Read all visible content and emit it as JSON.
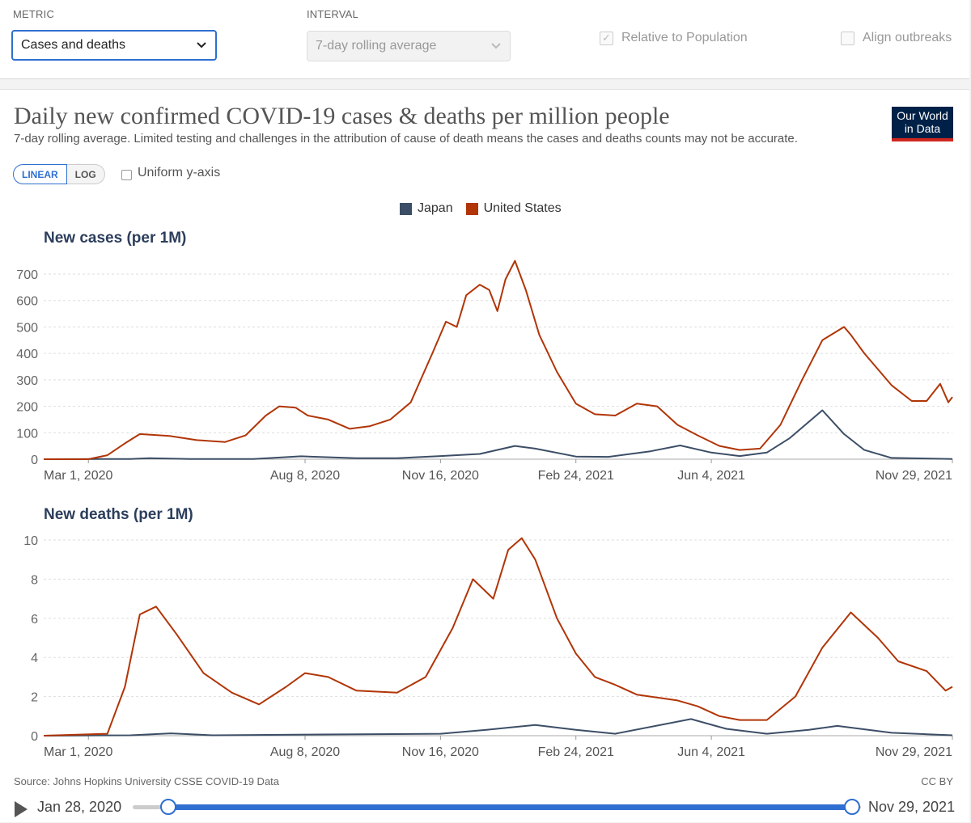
{
  "controls": {
    "metric_label": "METRIC",
    "metric_value": "Cases and deaths",
    "interval_label": "INTERVAL",
    "interval_value": "7-day rolling average",
    "relative_label": "Relative to Population",
    "relative_checked": true,
    "align_label": "Align outbreaks",
    "align_checked": false,
    "accent_color": "#2f6fd1"
  },
  "card": {
    "title": "Daily new confirmed COVID-19 cases & deaths per million people",
    "subtitle": "7-day rolling average. Limited testing and challenges in the attribution of cause of death means the cases and deaths counts may not be accurate.",
    "logo_line1": "Our World",
    "logo_line2": "in Data",
    "scale_linear": "LINEAR",
    "scale_log": "LOG",
    "uniform_label": "Uniform y-axis",
    "source": "Source: Johns Hopkins University CSSE COVID-19 Data",
    "license": "CC BY",
    "timeline_start": "Jan 28, 2020",
    "timeline_end": "Nov 29, 2021"
  },
  "chart_data": [
    {
      "type": "line",
      "title": "New cases (per 1M)",
      "ylim": [
        0,
        700
      ],
      "yticks": [
        0,
        100,
        200,
        300,
        400,
        500,
        600,
        700
      ],
      "xticks": [
        "Mar 1, 2020",
        "Aug 8, 2020",
        "Nov 16, 2020",
        "Feb 24, 2021",
        "Jun 4, 2021",
        "Nov 29, 2021"
      ],
      "grid": true,
      "legend": "top-center",
      "series": [
        {
          "name": "Japan",
          "color": "#3c4e66",
          "points": [
            [
              "2020-01-28",
              0
            ],
            [
              "2020-04-01",
              1
            ],
            [
              "2020-04-15",
              4
            ],
            [
              "2020-05-15",
              0.5
            ],
            [
              "2020-07-01",
              1
            ],
            [
              "2020-08-05",
              11
            ],
            [
              "2020-09-15",
              4
            ],
            [
              "2020-10-15",
              4
            ],
            [
              "2020-11-16",
              12
            ],
            [
              "2020-12-15",
              20
            ],
            [
              "2021-01-10",
              50
            ],
            [
              "2021-01-25",
              40
            ],
            [
              "2021-02-24",
              10
            ],
            [
              "2021-03-20",
              9
            ],
            [
              "2021-04-20",
              30
            ],
            [
              "2021-05-12",
              52
            ],
            [
              "2021-06-04",
              25
            ],
            [
              "2021-06-25",
              12
            ],
            [
              "2021-07-15",
              25
            ],
            [
              "2021-08-01",
              80
            ],
            [
              "2021-08-25",
              185
            ],
            [
              "2021-09-10",
              95
            ],
            [
              "2021-09-25",
              35
            ],
            [
              "2021-10-15",
              5
            ],
            [
              "2021-11-29",
              1
            ]
          ]
        },
        {
          "name": "United States",
          "color": "#b13507",
          "points": [
            [
              "2020-01-28",
              0
            ],
            [
              "2020-03-01",
              0
            ],
            [
              "2020-03-15",
              15
            ],
            [
              "2020-03-28",
              60
            ],
            [
              "2020-04-08",
              95
            ],
            [
              "2020-04-30",
              88
            ],
            [
              "2020-05-20",
              72
            ],
            [
              "2020-06-10",
              65
            ],
            [
              "2020-06-25",
              90
            ],
            [
              "2020-07-10",
              165
            ],
            [
              "2020-07-20",
              200
            ],
            [
              "2020-08-01",
              195
            ],
            [
              "2020-08-10",
              165
            ],
            [
              "2020-08-25",
              150
            ],
            [
              "2020-09-10",
              115
            ],
            [
              "2020-09-25",
              125
            ],
            [
              "2020-10-10",
              150
            ],
            [
              "2020-10-25",
              215
            ],
            [
              "2020-11-10",
              400
            ],
            [
              "2020-11-20",
              520
            ],
            [
              "2020-11-28",
              500
            ],
            [
              "2020-12-05",
              620
            ],
            [
              "2020-12-15",
              660
            ],
            [
              "2020-12-22",
              640
            ],
            [
              "2020-12-28",
              560
            ],
            [
              "2021-01-03",
              680
            ],
            [
              "2021-01-10",
              750
            ],
            [
              "2021-01-18",
              640
            ],
            [
              "2021-01-28",
              470
            ],
            [
              "2021-02-10",
              330
            ],
            [
              "2021-02-24",
              210
            ],
            [
              "2021-03-10",
              170
            ],
            [
              "2021-03-25",
              165
            ],
            [
              "2021-04-10",
              210
            ],
            [
              "2021-04-25",
              200
            ],
            [
              "2021-05-10",
              130
            ],
            [
              "2021-05-25",
              90
            ],
            [
              "2021-06-10",
              50
            ],
            [
              "2021-06-25",
              35
            ],
            [
              "2021-07-10",
              40
            ],
            [
              "2021-07-25",
              130
            ],
            [
              "2021-08-10",
              300
            ],
            [
              "2021-08-25",
              450
            ],
            [
              "2021-09-10",
              500
            ],
            [
              "2021-09-15",
              470
            ],
            [
              "2021-09-25",
              400
            ],
            [
              "2021-10-15",
              280
            ],
            [
              "2021-10-30",
              220
            ],
            [
              "2021-11-10",
              220
            ],
            [
              "2021-11-20",
              285
            ],
            [
              "2021-11-26",
              215
            ],
            [
              "2021-11-29",
              235
            ]
          ]
        }
      ]
    },
    {
      "type": "line",
      "title": "New deaths (per 1M)",
      "ylim": [
        0,
        10
      ],
      "yticks": [
        0,
        2,
        4,
        6,
        8,
        10
      ],
      "xticks": [
        "Mar 1, 2020",
        "Aug 8, 2020",
        "Nov 16, 2020",
        "Feb 24, 2021",
        "Jun 4, 2021",
        "Nov 29, 2021"
      ],
      "grid": true,
      "series": [
        {
          "name": "Japan",
          "color": "#3c4e66",
          "points": [
            [
              "2020-01-28",
              0
            ],
            [
              "2020-04-01",
              0.02
            ],
            [
              "2020-05-01",
              0.12
            ],
            [
              "2020-06-01",
              0.02
            ],
            [
              "2020-08-20",
              0.06
            ],
            [
              "2020-11-16",
              0.1
            ],
            [
              "2020-12-20",
              0.3
            ],
            [
              "2021-01-25",
              0.55
            ],
            [
              "2021-02-24",
              0.3
            ],
            [
              "2021-03-25",
              0.1
            ],
            [
              "2021-05-20",
              0.85
            ],
            [
              "2021-06-15",
              0.35
            ],
            [
              "2021-07-15",
              0.1
            ],
            [
              "2021-08-15",
              0.3
            ],
            [
              "2021-09-05",
              0.5
            ],
            [
              "2021-10-15",
              0.15
            ],
            [
              "2021-11-29",
              0.02
            ]
          ]
        },
        {
          "name": "United States",
          "color": "#b13507",
          "points": [
            [
              "2020-01-28",
              0
            ],
            [
              "2020-03-15",
              0.1
            ],
            [
              "2020-03-28",
              2.5
            ],
            [
              "2020-04-08",
              6.2
            ],
            [
              "2020-04-20",
              6.6
            ],
            [
              "2020-05-05",
              5.2
            ],
            [
              "2020-05-25",
              3.2
            ],
            [
              "2020-06-15",
              2.2
            ],
            [
              "2020-07-05",
              1.6
            ],
            [
              "2020-07-25",
              2.5
            ],
            [
              "2020-08-08",
              3.2
            ],
            [
              "2020-08-25",
              3.0
            ],
            [
              "2020-09-15",
              2.3
            ],
            [
              "2020-10-15",
              2.2
            ],
            [
              "2020-11-05",
              3.0
            ],
            [
              "2020-11-25",
              5.5
            ],
            [
              "2020-12-10",
              8.0
            ],
            [
              "2020-12-25",
              7.0
            ],
            [
              "2021-01-05",
              9.5
            ],
            [
              "2021-01-15",
              10.1
            ],
            [
              "2021-01-25",
              9.0
            ],
            [
              "2021-02-10",
              6.0
            ],
            [
              "2021-02-24",
              4.2
            ],
            [
              "2021-03-10",
              3.0
            ],
            [
              "2021-03-25",
              2.6
            ],
            [
              "2021-04-10",
              2.1
            ],
            [
              "2021-05-10",
              1.8
            ],
            [
              "2021-05-25",
              1.5
            ],
            [
              "2021-06-10",
              1.0
            ],
            [
              "2021-06-25",
              0.8
            ],
            [
              "2021-07-15",
              0.8
            ],
            [
              "2021-08-05",
              2.0
            ],
            [
              "2021-08-25",
              4.5
            ],
            [
              "2021-09-15",
              6.3
            ],
            [
              "2021-10-05",
              5.0
            ],
            [
              "2021-10-20",
              3.8
            ],
            [
              "2021-11-10",
              3.3
            ],
            [
              "2021-11-24",
              2.3
            ],
            [
              "2021-11-29",
              2.5
            ]
          ]
        }
      ]
    }
  ]
}
